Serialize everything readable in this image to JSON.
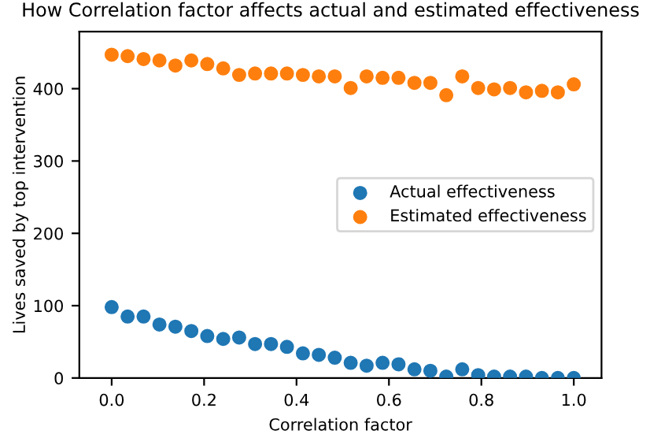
{
  "chart_data": {
    "type": "scatter",
    "title": "How Correlation factor affects actual and estimated effectiveness",
    "xlabel": "Correlation factor",
    "ylabel": "Lives saved by top intervention",
    "x": [
      0.0,
      0.0345,
      0.069,
      0.1034,
      0.1379,
      0.1724,
      0.2069,
      0.2414,
      0.2759,
      0.3103,
      0.3448,
      0.3793,
      0.4138,
      0.4483,
      0.4828,
      0.5172,
      0.5517,
      0.5862,
      0.6207,
      0.6552,
      0.6897,
      0.7241,
      0.7586,
      0.7931,
      0.8276,
      0.8621,
      0.8966,
      0.931,
      0.9655,
      1.0
    ],
    "series": [
      {
        "name": "Actual effectiveness",
        "color": "#1f77b4",
        "values": [
          98,
          85,
          85,
          74,
          71,
          65,
          58,
          54,
          56,
          47,
          47,
          43,
          34,
          32,
          28,
          21,
          17,
          21,
          19,
          12,
          10,
          2,
          12,
          4,
          2,
          2,
          2,
          0,
          0,
          0
        ]
      },
      {
        "name": "Estimated effectiveness",
        "color": "#ff7f0e",
        "values": [
          447,
          445,
          441,
          439,
          432,
          439,
          434,
          428,
          419,
          421,
          421,
          421,
          419,
          417,
          417,
          401,
          417,
          415,
          415,
          408,
          408,
          391,
          417,
          401,
          399,
          401,
          395,
          397,
          395,
          406
        ]
      }
    ],
    "xlim": [
      -0.07,
      1.06
    ],
    "ylim": [
      0,
      479
    ],
    "xticks": [
      {
        "value": 0,
        "label": "0.0"
      },
      0.2,
      0.4,
      0.6,
      0.8,
      {
        "value": 1,
        "label": "1.0"
      }
    ],
    "yticks": [
      0,
      100,
      200,
      300,
      400
    ],
    "legend": "center right",
    "marker": "circle",
    "grid": false
  }
}
